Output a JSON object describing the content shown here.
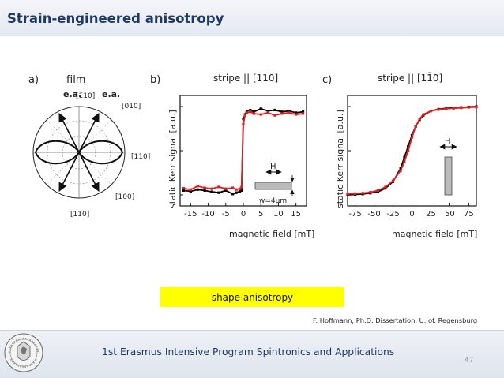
{
  "slide": {
    "title": "Strain-engineered anisotropy",
    "highlight_text": "shape anisotropy",
    "citation": "F. Hoffmann, Ph.D. Dissertation, U. of. Regensburg",
    "footer": "1st Erasmus Intensive Program Spintronics and Applications",
    "page_number": "47"
  },
  "colors": {
    "title": "#1f3864",
    "highlight": "#ffff00",
    "series_a": "#000000",
    "series_b": "#e02020"
  },
  "figure": {
    "panel_a": {
      "label": "a)",
      "title": "film",
      "directions": {
        "top": "[1̄10]",
        "top_right": "[010]",
        "right": "[110]",
        "bottom_right": "[100]",
        "bottom": "[11̄0]"
      },
      "ea_left": "e.a.",
      "ea_right": "e.a."
    },
    "panel_b": {
      "label": "b)",
      "title": "stripe || [110]",
      "ylabel": "static Kerr signal  [a.u.]",
      "xlabel": "magnetic field [mT]",
      "xticks": [
        "-15",
        "-10",
        "-5",
        "0",
        "5",
        "10",
        "15"
      ],
      "field_label": "H",
      "width_label": "w=4μm"
    },
    "panel_c": {
      "label": "c)",
      "title": "stripe || [11̄0]",
      "ylabel": "static Kerr signal  [a.u.]",
      "xlabel": "magnetic field [mT]",
      "xticks": [
        "-75",
        "-50",
        "-25",
        "0",
        "25",
        "50",
        "75"
      ],
      "field_label": "H"
    }
  },
  "chart_data": [
    {
      "type": "scatter",
      "title": "stripe || [110]",
      "xlabel": "magnetic field [mT]",
      "ylabel": "static Kerr signal  [a.u.]",
      "xlim": [
        -18,
        18
      ],
      "ylim": [
        -1.25,
        1.25
      ],
      "series": [
        {
          "x": [
            -17,
            -15,
            -13,
            -11,
            -9,
            -7,
            -5,
            -3,
            -2,
            -1,
            -0.5,
            0,
            0.5,
            1,
            2,
            3,
            5,
            7,
            9,
            11,
            13,
            15,
            17
          ],
          "y": [
            -0.9,
            -0.92,
            -0.88,
            -0.9,
            -0.93,
            -0.95,
            -0.9,
            -0.98,
            -0.95,
            -0.92,
            -0.9,
            0.72,
            0.82,
            0.9,
            0.92,
            0.88,
            0.95,
            0.9,
            0.92,
            0.88,
            0.9,
            0.86,
            0.88
          ]
        },
        {
          "x": [
            -17,
            -15,
            -13,
            -11,
            -9,
            -7,
            -5,
            -3,
            -2,
            -1,
            -0.5,
            0,
            0.5,
            1,
            2,
            3,
            5,
            7,
            9,
            11,
            13,
            15,
            17
          ],
          "y": [
            -0.85,
            -0.88,
            -0.8,
            -0.84,
            -0.86,
            -0.82,
            -0.86,
            -0.84,
            -0.88,
            -0.86,
            -0.82,
            0.6,
            0.8,
            0.86,
            0.88,
            0.84,
            0.82,
            0.86,
            0.8,
            0.84,
            0.86,
            0.82,
            0.84
          ]
        }
      ]
    },
    {
      "type": "scatter",
      "title": "stripe || [11̄0]",
      "xlabel": "magnetic field [mT]",
      "ylabel": "static Kerr signal  [a.u.]",
      "xlim": [
        -85,
        85
      ],
      "ylim": [
        -1.25,
        1.25
      ],
      "series": [
        {
          "x": [
            -85,
            -75,
            -65,
            -55,
            -45,
            -35,
            -25,
            -15,
            -10,
            -5,
            0,
            5,
            10,
            15,
            25,
            35,
            45,
            55,
            65,
            75,
            85
          ],
          "y": [
            -1.0,
            -0.99,
            -0.98,
            -0.96,
            -0.93,
            -0.85,
            -0.7,
            -0.4,
            -0.15,
            0.1,
            0.35,
            0.55,
            0.7,
            0.8,
            0.9,
            0.94,
            0.96,
            0.97,
            0.98,
            0.99,
            1.0
          ]
        },
        {
          "x": [
            -85,
            -75,
            -65,
            -55,
            -45,
            -35,
            -25,
            -15,
            -10,
            -5,
            0,
            5,
            10,
            15,
            25,
            35,
            45,
            55,
            65,
            75,
            85
          ],
          "y": [
            -0.98,
            -0.97,
            -0.96,
            -0.94,
            -0.9,
            -0.82,
            -0.68,
            -0.45,
            -0.25,
            0.0,
            0.3,
            0.55,
            0.72,
            0.82,
            0.9,
            0.93,
            0.95,
            0.96,
            0.97,
            0.98,
            0.99
          ]
        }
      ]
    }
  ]
}
